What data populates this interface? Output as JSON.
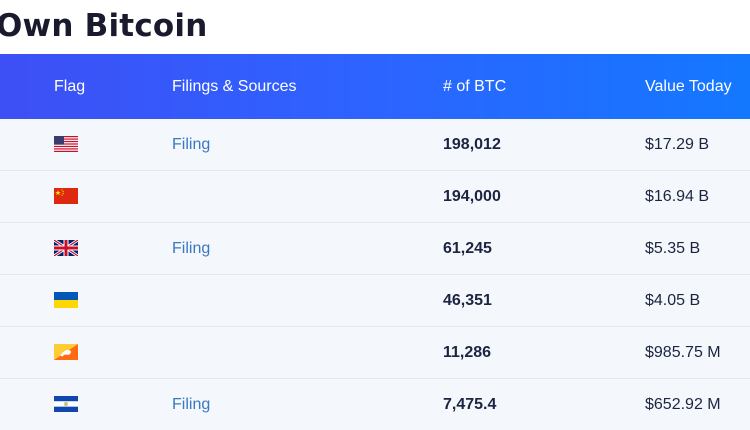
{
  "page": {
    "title": "Own Bitcoin"
  },
  "table": {
    "headers": {
      "flag": "Flag",
      "filings": "Filings & Sources",
      "btc": "# of BTC",
      "value": "Value Today"
    },
    "rows": [
      {
        "flag": "us-flag-icon",
        "filing": "Filing",
        "btc": "198,012",
        "value": "$17.29 B"
      },
      {
        "flag": "china-flag-icon",
        "filing": "",
        "btc": "194,000",
        "value": "$16.94 B"
      },
      {
        "flag": "uk-flag-icon",
        "filing": "Filing",
        "btc": "61,245",
        "value": "$5.35 B"
      },
      {
        "flag": "ukraine-flag-icon",
        "filing": "",
        "btc": "46,351",
        "value": "$4.05 B"
      },
      {
        "flag": "bhutan-flag-icon",
        "filing": "",
        "btc": "11,286",
        "value": "$985.75 M"
      },
      {
        "flag": "el-salvador-flag-icon",
        "filing": "Filing",
        "btc": "7,475.4",
        "value": "$652.92 M"
      }
    ]
  },
  "colors": {
    "header_start": "#3d4ff5",
    "header_end": "#1478ff",
    "row_bg": "#f4f7fc",
    "link": "#3a78c2",
    "text": "#1b2540"
  }
}
